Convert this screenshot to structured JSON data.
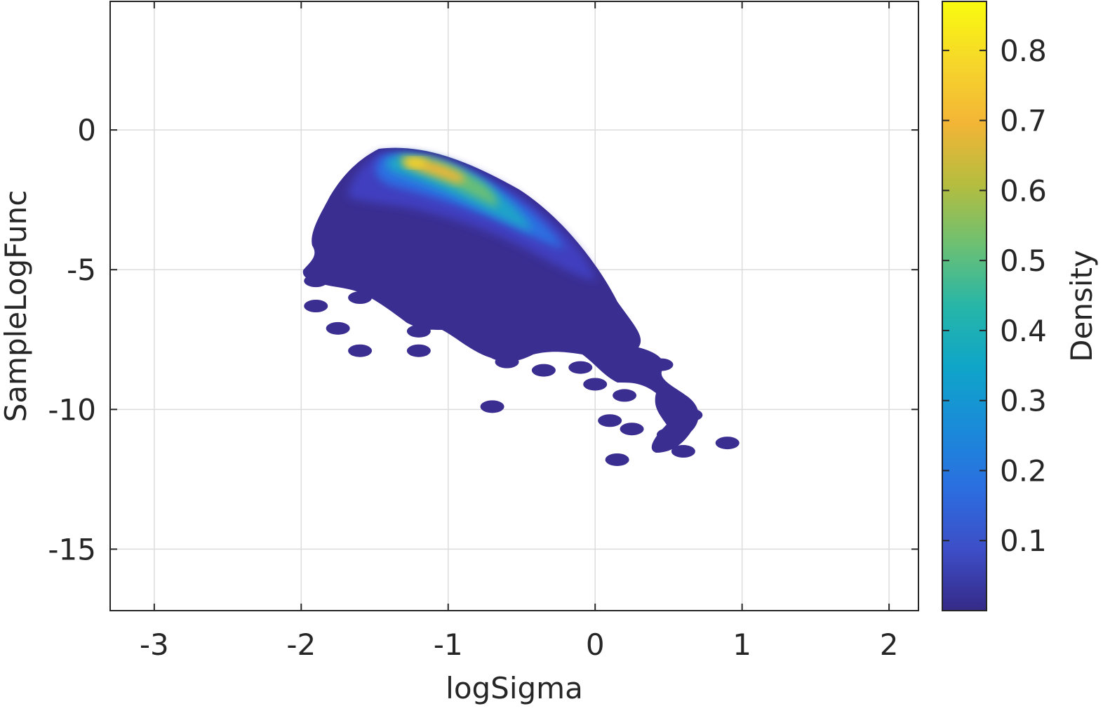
{
  "chart_data": {
    "type": "heatmap",
    "title": "",
    "xlabel": "logSigma",
    "ylabel": "SampleLogFunc",
    "xlim": [
      -3.3,
      2.2
    ],
    "ylim": [
      -17.2,
      4.6
    ],
    "xticks": [
      -3,
      -2,
      -1,
      0,
      1,
      2
    ],
    "xtick_labels": [
      "-3",
      "-2",
      "-1",
      "0",
      "1",
      "2"
    ],
    "yticks": [
      0,
      -5,
      -10,
      -15
    ],
    "ytick_labels": [
      "0",
      "-5",
      "-10",
      "-15"
    ],
    "grid": true,
    "colorbar": {
      "label": "Density",
      "range": [
        0.0,
        0.87
      ],
      "ticks": [
        0.1,
        0.2,
        0.3,
        0.4,
        0.5,
        0.6,
        0.7,
        0.8
      ],
      "tick_labels": [
        "0.1",
        "0.2",
        "0.3",
        "0.4",
        "0.5",
        "0.6",
        "0.7",
        "0.8"
      ],
      "colormap": "parula"
    },
    "density_points": [
      {
        "x": -1.25,
        "y": -1.2,
        "value": 0.85
      },
      {
        "x": -1.05,
        "y": -1.5,
        "value": 0.75
      },
      {
        "x": -0.9,
        "y": -1.9,
        "value": 0.65
      },
      {
        "x": -0.75,
        "y": -2.6,
        "value": 0.55
      },
      {
        "x": -0.55,
        "y": -3.4,
        "value": 0.45
      },
      {
        "x": -1.45,
        "y": -1.6,
        "value": 0.4
      },
      {
        "x": -1.0,
        "y": -2.5,
        "value": 0.35
      },
      {
        "x": -0.35,
        "y": -4.3,
        "value": 0.3
      },
      {
        "x": -0.2,
        "y": -5.0,
        "value": 0.22
      },
      {
        "x": -1.6,
        "y": -2.6,
        "value": 0.18
      },
      {
        "x": -1.2,
        "y": -3.3,
        "value": 0.15
      },
      {
        "x": -0.8,
        "y": -4.0,
        "value": 0.12
      },
      {
        "x": -0.4,
        "y": -5.5,
        "value": 0.1
      },
      {
        "x": 0.05,
        "y": -6.0,
        "value": 0.08
      },
      {
        "x": -1.7,
        "y": -4.0,
        "value": 0.06
      },
      {
        "x": -1.3,
        "y": -4.6,
        "value": 0.06
      },
      {
        "x": -0.6,
        "y": -6.0,
        "value": 0.05
      },
      {
        "x": 0.2,
        "y": -7.2,
        "value": 0.04
      },
      {
        "x": -1.9,
        "y": -5.4,
        "value": 0.03
      },
      {
        "x": -1.6,
        "y": -6.0,
        "value": 0.03
      },
      {
        "x": -1.9,
        "y": -6.3,
        "value": 0.02
      },
      {
        "x": -1.75,
        "y": -7.1,
        "value": 0.02
      },
      {
        "x": -1.6,
        "y": -7.9,
        "value": 0.02
      },
      {
        "x": -1.1,
        "y": -6.1,
        "value": 0.03
      },
      {
        "x": -1.2,
        "y": -7.2,
        "value": 0.02
      },
      {
        "x": -1.2,
        "y": -7.9,
        "value": 0.02
      },
      {
        "x": -0.9,
        "y": -7.0,
        "value": 0.02
      },
      {
        "x": -0.6,
        "y": -8.3,
        "value": 0.02
      },
      {
        "x": -0.35,
        "y": -8.6,
        "value": 0.02
      },
      {
        "x": -0.7,
        "y": -9.9,
        "value": 0.02
      },
      {
        "x": -0.1,
        "y": -8.5,
        "value": 0.02
      },
      {
        "x": 0.0,
        "y": -9.1,
        "value": 0.02
      },
      {
        "x": 0.25,
        "y": -8.7,
        "value": 0.02
      },
      {
        "x": 0.45,
        "y": -8.4,
        "value": 0.02
      },
      {
        "x": 0.2,
        "y": -9.5,
        "value": 0.02
      },
      {
        "x": 0.55,
        "y": -9.7,
        "value": 0.02
      },
      {
        "x": 0.65,
        "y": -10.2,
        "value": 0.02
      },
      {
        "x": 0.1,
        "y": -10.4,
        "value": 0.02
      },
      {
        "x": 0.25,
        "y": -10.7,
        "value": 0.02
      },
      {
        "x": 0.5,
        "y": -10.9,
        "value": 0.02
      },
      {
        "x": 0.6,
        "y": -11.5,
        "value": 0.02
      },
      {
        "x": 0.9,
        "y": -11.2,
        "value": 0.02
      },
      {
        "x": 0.15,
        "y": -11.8,
        "value": 0.02
      }
    ]
  }
}
